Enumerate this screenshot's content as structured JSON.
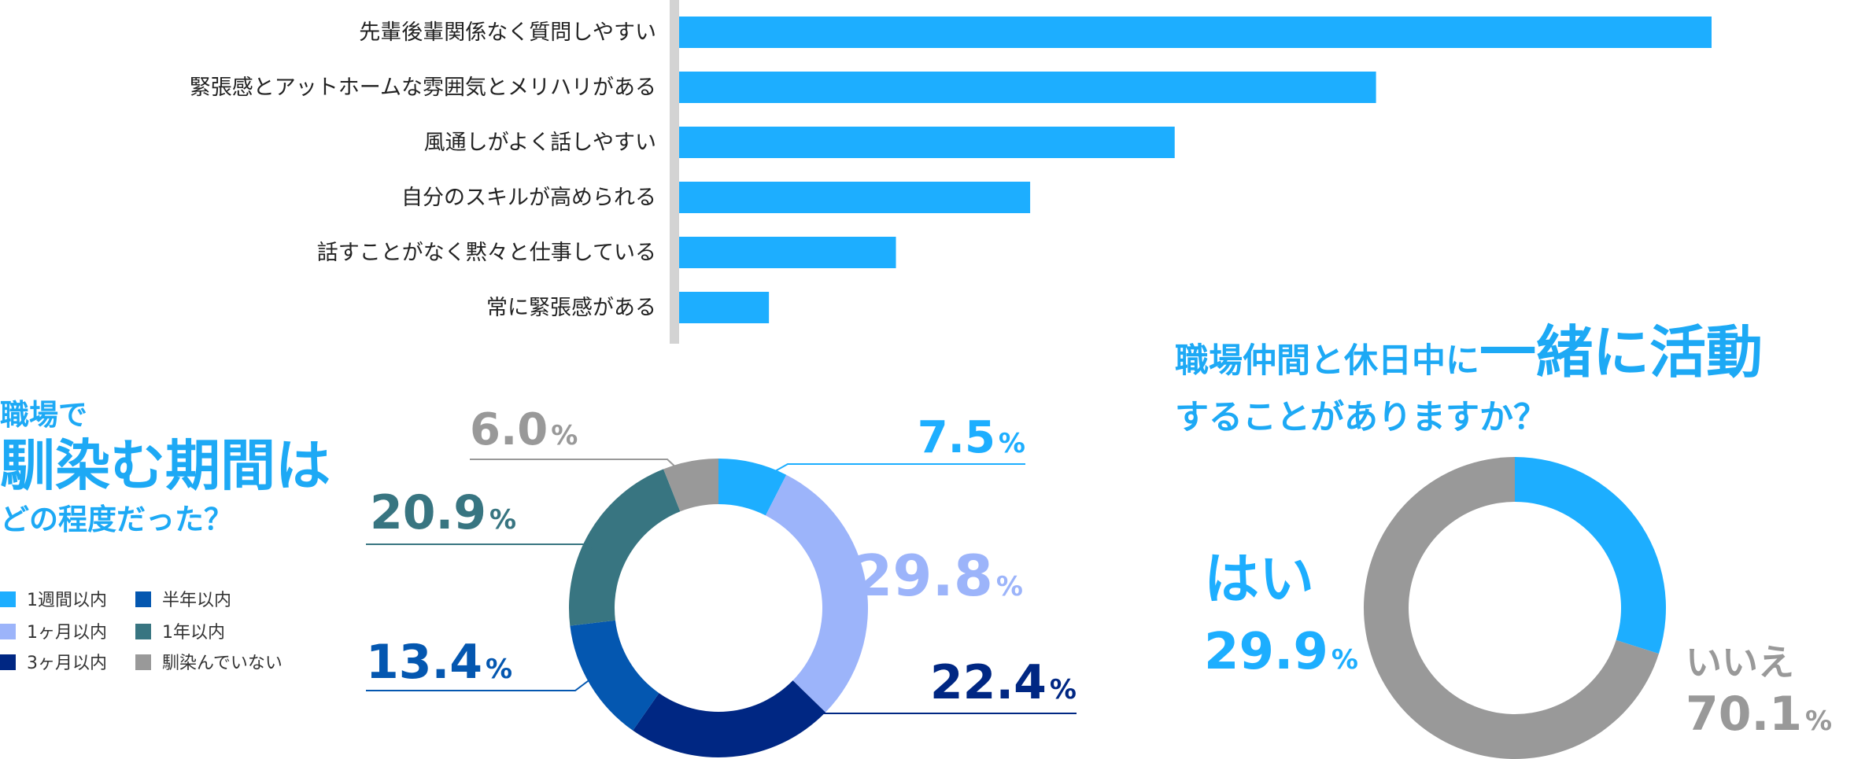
{
  "colors": {
    "bar": "#1daeff",
    "axis": "#d3d3d3",
    "accent": "#1da9f5",
    "week": "#1daeff",
    "month1": "#9cb4fa",
    "month3": "#002783",
    "halfyear": "#0457b0",
    "year1": "#387581",
    "none": "#999999"
  },
  "chart_data": [
    {
      "type": "bar",
      "orientation": "horizontal",
      "categories": [
        "先輩後輩関係なく質問しやすい",
        "緊張感とアットホームな雰囲気とメリハリがある",
        "風通しがよく話しやすい",
        "自分のスキルが高められる",
        "話すことがなく黙々と仕事している",
        "常に緊張感がある"
      ],
      "values": [
        100,
        67.5,
        48,
        34,
        21,
        8.7
      ],
      "xlim": [
        0,
        100
      ],
      "grid": false
    },
    {
      "type": "pie",
      "variant": "donut",
      "title_lines": [
        "職場で",
        "馴染む期間は",
        "どの程度だった？"
      ],
      "slices": [
        {
          "key": "week",
          "label": "1週間以内",
          "value": 7.5,
          "value_text": "7.5",
          "color": "#1daeff"
        },
        {
          "key": "month1",
          "label": "1ヶ月以内",
          "value": 29.8,
          "value_text": "29.8",
          "color": "#9cb4fa"
        },
        {
          "key": "month3",
          "label": "3ヶ月以内",
          "value": 22.4,
          "value_text": "22.4",
          "color": "#002783"
        },
        {
          "key": "halfyear",
          "label": "半年以内",
          "value": 13.4,
          "value_text": "13.4",
          "color": "#0457b0"
        },
        {
          "key": "year1",
          "label": "1年以内",
          "value": 20.9,
          "value_text": "20.9",
          "color": "#387581"
        },
        {
          "key": "none",
          "label": "馴染んでいない",
          "value": 6.0,
          "value_text": "6.0",
          "color": "#999999"
        }
      ],
      "unit": "%",
      "legend_position": "left"
    },
    {
      "type": "pie",
      "variant": "donut",
      "title_line1_pre": "職場仲間と休日中に",
      "title_line1_em": "一緒に活動",
      "title_line2": "することがありますか？",
      "slices": [
        {
          "key": "yes",
          "label": "はい",
          "value": 29.9,
          "value_text": "29.9",
          "color": "#1daeff"
        },
        {
          "key": "no",
          "label": "いいえ",
          "value": 70.1,
          "value_text": "70.1",
          "color": "#999999"
        }
      ],
      "unit": "%"
    }
  ]
}
